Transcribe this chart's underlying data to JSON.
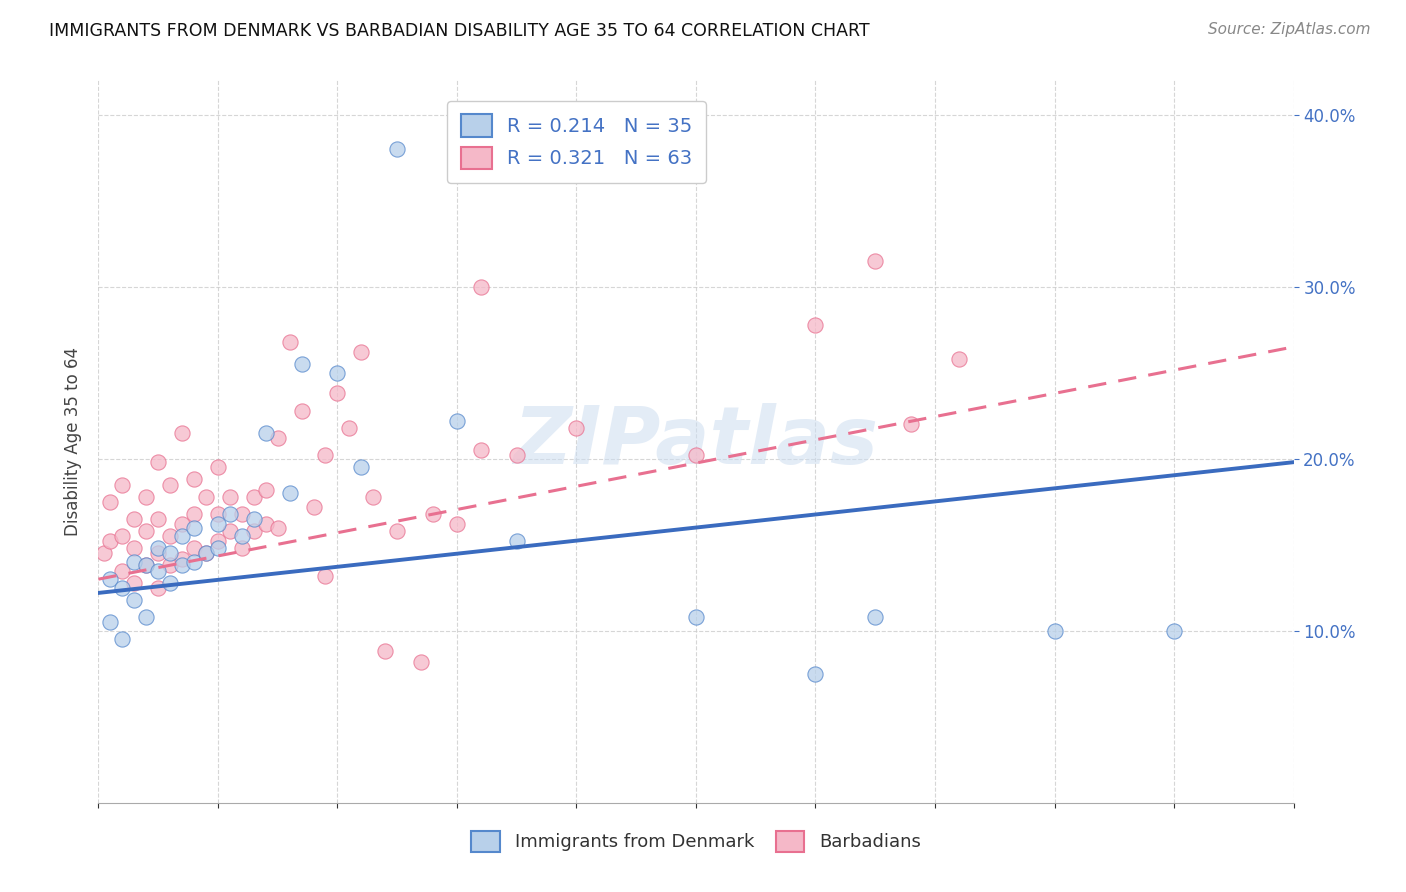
{
  "title": "IMMIGRANTS FROM DENMARK VS BARBADIAN DISABILITY AGE 35 TO 64 CORRELATION CHART",
  "source": "Source: ZipAtlas.com",
  "ylabel": "Disability Age 35 to 64",
  "xlim": [
    0.0,
    0.1
  ],
  "ylim": [
    0.0,
    0.42
  ],
  "xticks": [
    0.0,
    0.01,
    0.02,
    0.03,
    0.04,
    0.05,
    0.06,
    0.07,
    0.08,
    0.09,
    0.1
  ],
  "yticks": [
    0.1,
    0.2,
    0.3,
    0.4
  ],
  "color_denmark": "#b8d0ea",
  "color_barbadian": "#f5b8c8",
  "color_denmark_edge": "#5588cc",
  "color_barbadian_edge": "#e87090",
  "color_denmark_line": "#3a6bbf",
  "color_barbadian_line": "#e87090",
  "denmark_x": [
    0.001,
    0.001,
    0.002,
    0.002,
    0.003,
    0.003,
    0.004,
    0.004,
    0.005,
    0.005,
    0.006,
    0.006,
    0.007,
    0.007,
    0.008,
    0.008,
    0.009,
    0.01,
    0.01,
    0.011,
    0.012,
    0.013,
    0.014,
    0.016,
    0.017,
    0.02,
    0.022,
    0.025,
    0.03,
    0.035,
    0.05,
    0.06,
    0.065,
    0.08,
    0.09
  ],
  "denmark_y": [
    0.13,
    0.105,
    0.125,
    0.095,
    0.14,
    0.118,
    0.138,
    0.108,
    0.135,
    0.148,
    0.128,
    0.145,
    0.138,
    0.155,
    0.14,
    0.16,
    0.145,
    0.148,
    0.162,
    0.168,
    0.155,
    0.165,
    0.215,
    0.18,
    0.255,
    0.25,
    0.195,
    0.38,
    0.222,
    0.152,
    0.108,
    0.075,
    0.108,
    0.1,
    0.1
  ],
  "barbadian_x": [
    0.0005,
    0.001,
    0.001,
    0.002,
    0.002,
    0.002,
    0.003,
    0.003,
    0.003,
    0.004,
    0.004,
    0.004,
    0.005,
    0.005,
    0.005,
    0.005,
    0.006,
    0.006,
    0.006,
    0.007,
    0.007,
    0.007,
    0.008,
    0.008,
    0.008,
    0.009,
    0.009,
    0.01,
    0.01,
    0.01,
    0.011,
    0.011,
    0.012,
    0.012,
    0.013,
    0.013,
    0.014,
    0.014,
    0.015,
    0.015,
    0.016,
    0.017,
    0.018,
    0.019,
    0.019,
    0.02,
    0.021,
    0.022,
    0.023,
    0.024,
    0.025,
    0.027,
    0.028,
    0.03,
    0.032,
    0.032,
    0.035,
    0.04,
    0.05,
    0.06,
    0.065,
    0.068,
    0.072
  ],
  "barbadian_y": [
    0.145,
    0.152,
    0.175,
    0.135,
    0.155,
    0.185,
    0.128,
    0.148,
    0.165,
    0.138,
    0.158,
    0.178,
    0.125,
    0.145,
    0.165,
    0.198,
    0.138,
    0.155,
    0.185,
    0.142,
    0.162,
    0.215,
    0.148,
    0.168,
    0.188,
    0.145,
    0.178,
    0.152,
    0.168,
    0.195,
    0.158,
    0.178,
    0.148,
    0.168,
    0.158,
    0.178,
    0.162,
    0.182,
    0.16,
    0.212,
    0.268,
    0.228,
    0.172,
    0.132,
    0.202,
    0.238,
    0.218,
    0.262,
    0.178,
    0.088,
    0.158,
    0.082,
    0.168,
    0.162,
    0.205,
    0.3,
    0.202,
    0.218,
    0.202,
    0.278,
    0.315,
    0.22,
    0.258
  ],
  "dk_line_x0": 0.0,
  "dk_line_y0": 0.122,
  "dk_line_x1": 0.1,
  "dk_line_y1": 0.198,
  "bb_line_x0": 0.0,
  "bb_line_y0": 0.13,
  "bb_line_x1": 0.1,
  "bb_line_y1": 0.265,
  "background_color": "#ffffff",
  "grid_color": "#cccccc",
  "watermark_text": "ZIPatlas",
  "watermark_color": "#ccddf0"
}
